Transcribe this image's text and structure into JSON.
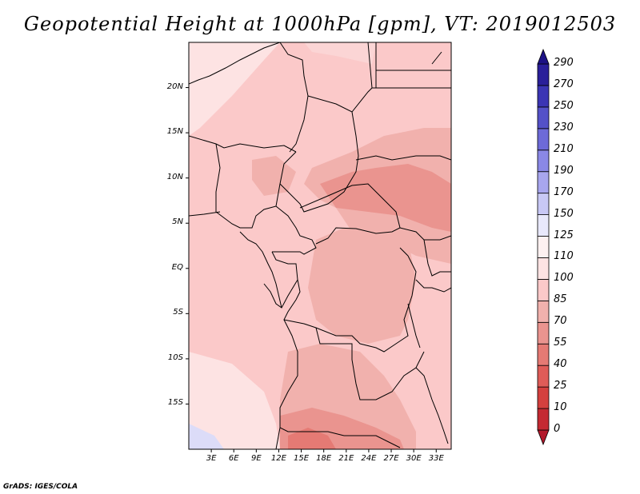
{
  "title": "Geopotential Height at 1000hPa [gpm], VT: 2019012503",
  "footer": "GrADS: IGES/COLA",
  "map": {
    "lon_range": [
      0,
      35
    ],
    "lat_range": [
      -20,
      25
    ],
    "lat_ticks": [
      {
        "value": 20,
        "label": "20N"
      },
      {
        "value": 15,
        "label": "15N"
      },
      {
        "value": 10,
        "label": "10N"
      },
      {
        "value": 5,
        "label": "5N"
      },
      {
        "value": 0,
        "label": "EQ"
      },
      {
        "value": -5,
        "label": "5S"
      },
      {
        "value": -10,
        "label": "10S"
      },
      {
        "value": -15,
        "label": "15S"
      }
    ],
    "lon_ticks": [
      {
        "value": 3,
        "label": "3E"
      },
      {
        "value": 6,
        "label": "6E"
      },
      {
        "value": 9,
        "label": "9E"
      },
      {
        "value": 12,
        "label": "12E"
      },
      {
        "value": 15,
        "label": "15E"
      },
      {
        "value": 18,
        "label": "18E"
      },
      {
        "value": 21,
        "label": "21E"
      },
      {
        "value": 24,
        "label": "24E"
      },
      {
        "value": 27,
        "label": "27E"
      },
      {
        "value": 30,
        "label": "30E"
      },
      {
        "value": 33,
        "label": "33E"
      }
    ]
  },
  "colorbar": {
    "levels": [
      "0",
      "10",
      "25",
      "40",
      "55",
      "70",
      "85",
      "100",
      "110",
      "125",
      "150",
      "170",
      "190",
      "210",
      "230",
      "250",
      "270",
      "290"
    ],
    "colors": [
      "#b2182b",
      "#c42a32",
      "#d4403e",
      "#df5c58",
      "#e57a74",
      "#ea948f",
      "#f1b1ad",
      "#fbc9c9",
      "#fde3e3",
      "#fdf1f1",
      "#e8e8fb",
      "#c8c8f5",
      "#a8a6ee",
      "#8a88e6",
      "#6d6ad8",
      "#5451c8",
      "#3b35b4",
      "#2a1f9a",
      "#1d1285"
    ]
  }
}
